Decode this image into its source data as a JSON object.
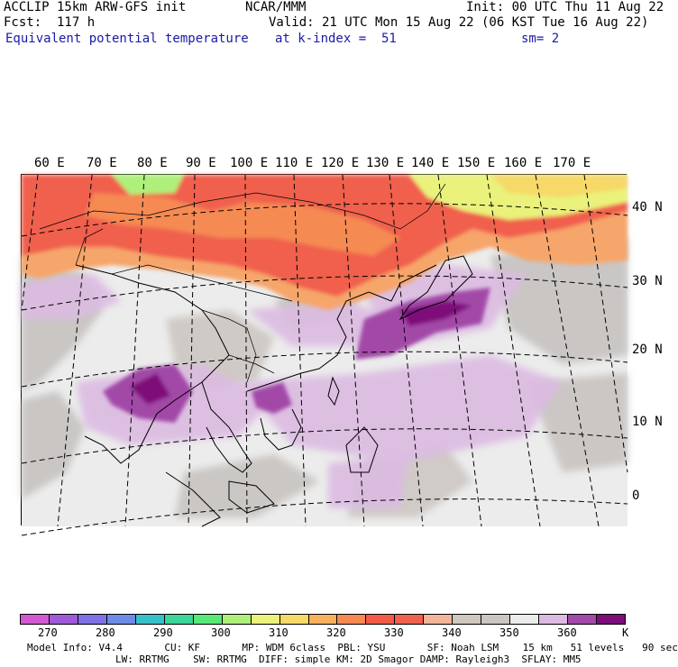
{
  "header": {
    "left_line1": "ACCLIP 15km ARW-GFS init",
    "left_line2": "Fcst:  117 h",
    "field_name": "Equivalent potential temperature",
    "center_line1": "NCAR/MMM",
    "init": "Init: 00 UTC Thu 11 Aug 22",
    "valid": "Valid: 21 UTC Mon 15 Aug 22 (06 KST Tue 16 Aug 22)",
    "level": "at k-index =  51",
    "smoothing": "sm= 2"
  },
  "map": {
    "lon_labels": [
      "60 E",
      "70 E",
      "80 E",
      "90 E",
      "100 E",
      "110 E",
      "120 E",
      "130 E",
      "140 E",
      "150 E",
      "160 E",
      "170 E"
    ],
    "lat_labels": [
      "40 N",
      "30 N",
      "20 N",
      "10 N",
      "0"
    ]
  },
  "colorbar": {
    "colors": [
      "#d259d2",
      "#a05ad8",
      "#7f72e6",
      "#6d8ce8",
      "#38c0c8",
      "#3ad69a",
      "#57e978",
      "#aef07a",
      "#eaf27b",
      "#f6d967",
      "#f7b15c",
      "#f58a52",
      "#f15b48",
      "#f0614e",
      "#f3b59a",
      "#d0c7bf",
      "#c9c6c4",
      "#ececec",
      "#dcbbe2",
      "#a24aa8",
      "#7e0c7a"
    ],
    "tick_labels": [
      "270",
      "280",
      "290",
      "300",
      "310",
      "320",
      "330",
      "340",
      "350",
      "360"
    ],
    "units": "K"
  },
  "footer": {
    "line1": "Model Info: V4.4       CU: KF       MP: WDM 6class  PBL: YSU       SF: Noah LSM    15 km   51 levels   90 sec",
    "line2": "LW: RRTMG    SW: RRTMG  DIFF: simple KM: 2D Smagor DAMP: Rayleigh3  SFLAY: MM5"
  }
}
